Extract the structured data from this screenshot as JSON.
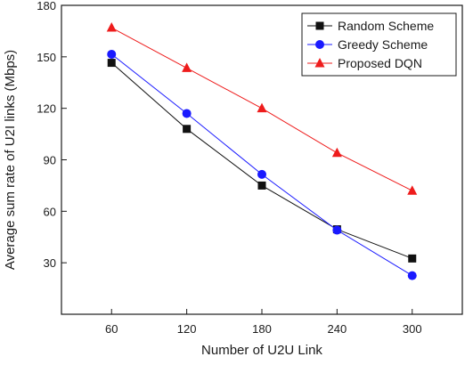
{
  "chart_data": {
    "type": "line",
    "title": "",
    "xlabel": "Number of U2U Link",
    "ylabel": "Average sum rate of  U2I links (Mbps)",
    "x": [
      60,
      120,
      180,
      240,
      300
    ],
    "xticks": [
      60,
      120,
      180,
      240,
      300
    ],
    "xlim": [
      20,
      340
    ],
    "ylim": [
      0,
      180
    ],
    "yticks": [
      30,
      60,
      90,
      120,
      150,
      180
    ],
    "grid": false,
    "legend_position": "top-right",
    "series": [
      {
        "name": "Random Scheme",
        "values": [
          146.5,
          108,
          75,
          49.5,
          32.5
        ],
        "color": "#111111",
        "marker": "square"
      },
      {
        "name": "Greedy Scheme",
        "values": [
          151.5,
          117,
          81.5,
          49,
          22.5
        ],
        "color": "#1a1aff",
        "marker": "circle"
      },
      {
        "name": "Proposed DQN",
        "values": [
          167,
          143.5,
          120,
          94,
          72
        ],
        "color": "#ee1c1c",
        "marker": "triangle"
      }
    ]
  }
}
